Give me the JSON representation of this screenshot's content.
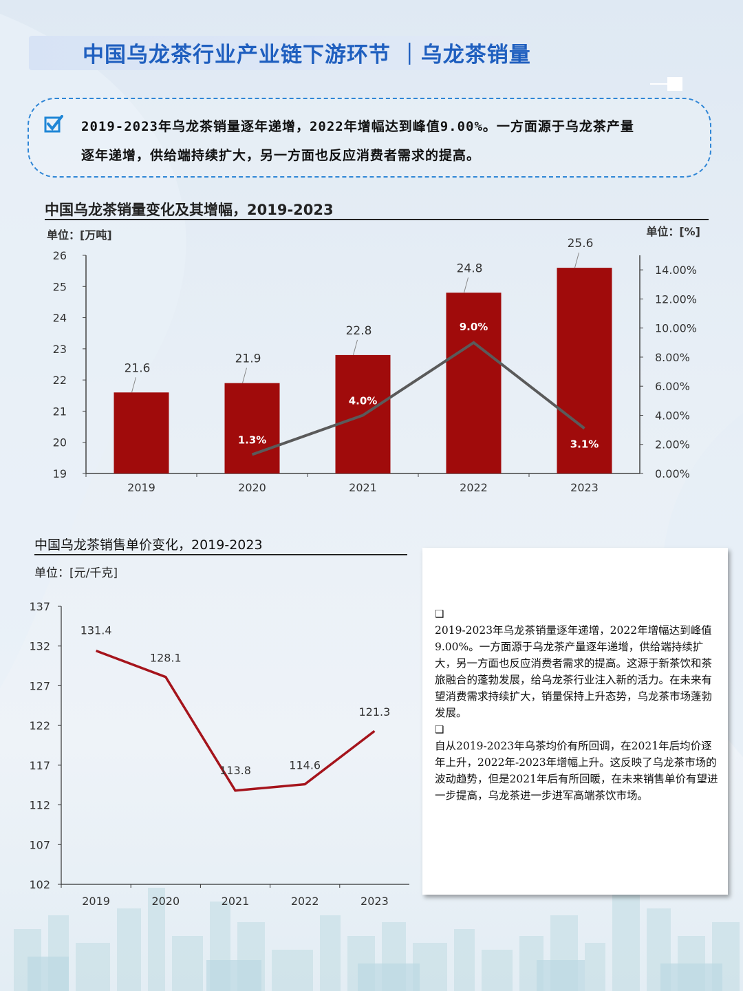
{
  "header": {
    "title": "中国乌龙茶行业产业链下游环节 ｜乌龙茶销量"
  },
  "summary": {
    "icon": "checkbox-icon",
    "text_line1": "2019-2023年乌龙茶销量逐年递增，2022年增幅达到峰值9.00%。一方面源于乌龙茶产量",
    "text_line2": "逐年递增，供给端持续扩大，另一方面也反应消费者需求的提高。"
  },
  "chart_data": [
    {
      "type": "bar",
      "title": "中国乌龙茶销量变化及其增幅，2019-2023",
      "ylabel": "单位：[万吨]",
      "y2label": "单位：[%]",
      "categories": [
        "2019",
        "2020",
        "2021",
        "2022",
        "2023"
      ],
      "ylim": [
        19,
        26
      ],
      "yticks": [
        "19",
        "20",
        "21",
        "22",
        "23",
        "24",
        "25",
        "26"
      ],
      "y2lim": [
        0,
        15
      ],
      "y2ticks": [
        "0.00%",
        "2.00%",
        "4.00%",
        "6.00%",
        "8.00%",
        "10.00%",
        "12.00%",
        "14.00%"
      ],
      "series": [
        {
          "type": "bar",
          "values": [
            21.6,
            21.9,
            22.8,
            24.8,
            25.6
          ],
          "labels": [
            "21.6",
            "21.9",
            "22.8",
            "24.8",
            "25.6"
          ],
          "color": "#a00b0b"
        },
        {
          "type": "line",
          "axis": "right",
          "x": [
            "2020",
            "2021",
            "2022",
            "2023"
          ],
          "values": [
            1.3,
            4.0,
            9.0,
            3.1
          ],
          "labels": [
            "1.3%",
            "4.0%",
            "9.0%",
            "3.1%"
          ],
          "color": "#5a5a5a"
        }
      ]
    },
    {
      "type": "line",
      "title": "中国乌龙茶销售单价变化，2019-2023",
      "ylabel": "单位：[元/千克]",
      "categories": [
        "2019",
        "2020",
        "2021",
        "2022",
        "2023"
      ],
      "ylim": [
        102,
        137
      ],
      "yticks": [
        "102",
        "107",
        "112",
        "117",
        "122",
        "127",
        "132",
        "137"
      ],
      "series": [
        {
          "values": [
            131.4,
            128.1,
            113.8,
            114.6,
            121.3
          ],
          "labels": [
            "131.4",
            "128.1",
            "113.8",
            "114.6",
            "121.3"
          ],
          "color": "#a5141c"
        }
      ]
    }
  ],
  "panel": {
    "bullet": "❑",
    "para1": "2019-2023年乌龙茶销量逐年递增，2022年增幅达到峰值9.00%。一方面源于乌龙茶产量逐年递增，供给端持续扩大，另一方面也反应消费者需求的提高。这源于新茶饮和茶旅融合的蓬勃发展，给乌龙茶行业注入新的活力。在未来有望消费需求持续扩大，销量保持上升态势，乌龙茶市场蓬勃发展。",
    "para2": "自从2019-2023年乌茶均价有所回调，在2021年后均价逐年上升，2022年-2023年增幅上升。这反映了乌龙茶市场的波动趋势，但是2021年后有所回暖，在未来销售单价有望进一步提高，乌龙茶进一步进军高端茶饮市场。"
  }
}
